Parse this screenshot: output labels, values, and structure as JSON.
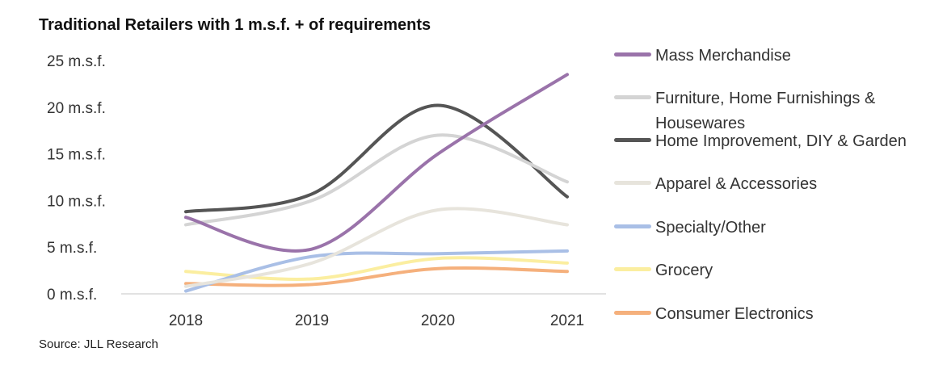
{
  "title": "Traditional Retailers with 1 m.s.f. + of requirements",
  "source": "Source: JLL Research",
  "chart_data": {
    "type": "line",
    "title": "Traditional Retailers with 1 m.s.f. + of requirements",
    "x": [
      "2018",
      "2019",
      "2020",
      "2021"
    ],
    "y_unit": "m.s.f.",
    "yticks": [
      "0 m.s.f.",
      "5 m.s.f.",
      "10 m.s.f.",
      "15 m.s.f.",
      "20 m.s.f.",
      "25 m.s.f."
    ],
    "ylim": [
      0,
      25
    ],
    "grid": false,
    "legend_position": "right",
    "series": [
      {
        "name": "Mass Merchandise",
        "color": "#9a73aa",
        "values": [
          8.2,
          4.8,
          15.0,
          23.5
        ]
      },
      {
        "name": "Furniture, Home Furnishings & Housewares",
        "color": "#d4d4d4",
        "values": [
          7.4,
          10.0,
          17.0,
          12.0
        ]
      },
      {
        "name": "Home Improvement, DIY & Garden",
        "color": "#555555",
        "values": [
          8.8,
          10.7,
          20.2,
          10.4
        ]
      },
      {
        "name": "Apparel & Accessories",
        "color": "#e7e4dc",
        "values": [
          0.8,
          3.3,
          9.0,
          7.4
        ]
      },
      {
        "name": "Specialty/Other",
        "color": "#a9bfe6",
        "values": [
          0.3,
          4.0,
          4.3,
          4.6
        ]
      },
      {
        "name": "Grocery",
        "color": "#fbeea0",
        "values": [
          2.4,
          1.6,
          3.8,
          3.3
        ]
      },
      {
        "name": "Consumer Electronics",
        "color": "#f5b07c",
        "values": [
          1.1,
          1.0,
          2.7,
          2.4
        ]
      }
    ]
  }
}
